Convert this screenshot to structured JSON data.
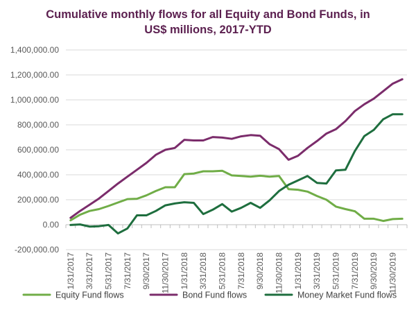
{
  "chart_data": {
    "type": "line",
    "title_line1": "Cumulative monthly flows for  all Equity and Bond Funds, in",
    "title_line2": "US$ millions, 2017-YTD",
    "xlabel": "",
    "ylabel": "",
    "ylim": [
      -200000,
      1400000
    ],
    "ytick_values": [
      -200000,
      0,
      200000,
      400000,
      600000,
      800000,
      1000000,
      1200000,
      1400000
    ],
    "ytick_labels": [
      "-200,000.00",
      "0.00",
      "200,000.00",
      "400,000.00",
      "600,000.00",
      "800,000.00",
      "1,000,000.00",
      "1,200,000.00",
      "1,400,000.00"
    ],
    "grid": true,
    "legend_position": "bottom",
    "categories": [
      "1/31/2017",
      "2/28/2017",
      "3/31/2017",
      "4/30/2017",
      "5/31/2017",
      "6/30/2017",
      "7/31/2017",
      "8/31/2017",
      "9/30/2017",
      "10/31/2017",
      "11/30/2017",
      "12/31/2017",
      "1/31/2018",
      "2/28/2018",
      "3/31/2018",
      "4/30/2018",
      "5/31/2018",
      "6/30/2018",
      "7/31/2018",
      "8/31/2018",
      "9/30/2018",
      "10/31/2018",
      "11/30/2018",
      "12/31/2018",
      "1/31/2019",
      "2/28/2019",
      "3/31/2019",
      "4/30/2019",
      "5/31/2019",
      "6/30/2019",
      "7/31/2019",
      "8/31/2019",
      "9/30/2019",
      "10/31/2019",
      "11/30/2019",
      "12/31/2019"
    ],
    "x_tick_labels": [
      "1/31/2017",
      "3/31/2017",
      "5/31/2017",
      "7/31/2017",
      "9/30/2017",
      "11/30/2017",
      "1/31/2018",
      "3/31/2018",
      "5/31/2018",
      "7/31/2018",
      "9/30/2018",
      "11/30/2018",
      "1/31/2019",
      "3/31/2019",
      "5/31/2019",
      "7/31/2019",
      "9/30/2019",
      "11/30/2019"
    ],
    "series": [
      {
        "name": "Equity Fund flows",
        "color": "#70ad47",
        "values": [
          35000,
          80000,
          110000,
          125000,
          150000,
          178000,
          205000,
          208000,
          235000,
          270000,
          300000,
          300000,
          405000,
          410000,
          428000,
          428000,
          432000,
          395000,
          390000,
          385000,
          392000,
          385000,
          390000,
          285000,
          280000,
          265000,
          230000,
          200000,
          145000,
          125000,
          108000,
          48000,
          48000,
          30000,
          45000,
          48000
        ]
      },
      {
        "name": "Bond Fund flows",
        "color": "#7b2c6b",
        "values": [
          55000,
          110000,
          160000,
          210000,
          270000,
          330000,
          385000,
          440000,
          495000,
          560000,
          600000,
          615000,
          680000,
          675000,
          675000,
          702000,
          698000,
          688000,
          708000,
          718000,
          712000,
          645000,
          605000,
          520000,
          552000,
          615000,
          670000,
          730000,
          765000,
          830000,
          910000,
          965000,
          1010000,
          1070000,
          1130000,
          1165000
        ]
      },
      {
        "name": "Money Market Fund flows",
        "color": "#1e6e3e",
        "values": [
          -2000,
          2000,
          -15000,
          -12000,
          -2000,
          -70000,
          -30000,
          75000,
          75000,
          110000,
          155000,
          170000,
          180000,
          175000,
          85000,
          120000,
          165000,
          105000,
          135000,
          175000,
          135000,
          195000,
          270000,
          320000,
          355000,
          390000,
          335000,
          330000,
          435000,
          440000,
          590000,
          710000,
          760000,
          845000,
          885000,
          885000
        ]
      }
    ]
  }
}
